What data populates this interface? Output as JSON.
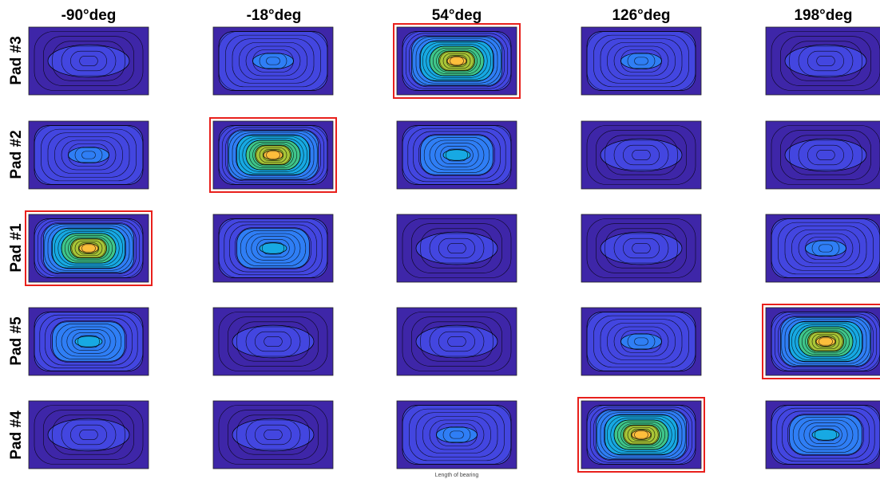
{
  "chart_data": {
    "type": "heatmap",
    "subtype": "contour-grid",
    "title": "",
    "columns": [
      "-90°deg",
      "-18°deg",
      "54°deg",
      "126°deg",
      "198°deg"
    ],
    "rows": [
      "Pad #3",
      "Pad #2",
      "Pad #1",
      "Pad #5",
      "Pad #4"
    ],
    "xlabel": "Length of bearing",
    "ylabel": "",
    "grid": false,
    "colormap": [
      "#3e26a8",
      "#4346e0",
      "#2f7ef5",
      "#17a9e3",
      "#3fc58a",
      "#a8c537",
      "#fdbe3c"
    ],
    "highlight_color": "#e8201c",
    "levels": [
      [
        1,
        2,
        6,
        2,
        1
      ],
      [
        2,
        6,
        3,
        1,
        1
      ],
      [
        6,
        3,
        1,
        1,
        2
      ],
      [
        3,
        1,
        1,
        2,
        6
      ],
      [
        1,
        1,
        2,
        6,
        3
      ]
    ],
    "highlighted": [
      [
        false,
        false,
        true,
        false,
        false
      ],
      [
        false,
        true,
        false,
        false,
        false
      ],
      [
        true,
        false,
        false,
        false,
        false
      ],
      [
        false,
        false,
        false,
        false,
        true
      ],
      [
        false,
        false,
        false,
        true,
        false
      ]
    ]
  }
}
